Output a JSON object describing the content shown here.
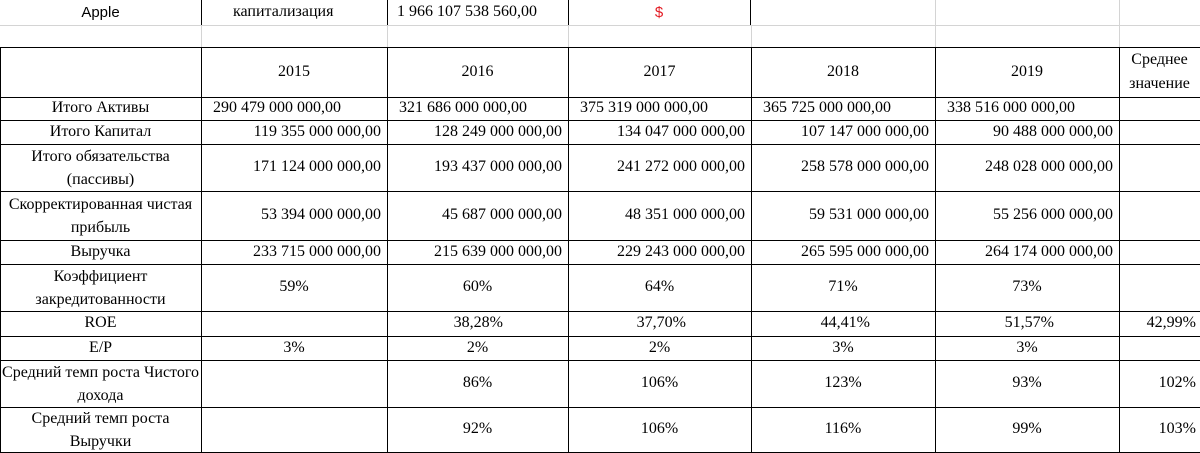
{
  "header": {
    "company": "Apple",
    "cap_label": "капитализация",
    "cap_value": "1 966 107 538 560,00",
    "currency": "$"
  },
  "years": [
    "2015",
    "2016",
    "2017",
    "2018",
    "2019"
  ],
  "avg_header": "Среднее значение",
  "rows": [
    {
      "label": "Итого Активы",
      "values": [
        "290 479 000 000,00",
        "321 686 000 000,00",
        "375 319 000 000,00",
        "365 725 000 000,00",
        "338 516 000 000,00"
      ],
      "avg": ""
    },
    {
      "label": "Итого Капитал",
      "values": [
        "119 355 000 000,00",
        "128 249 000 000,00",
        "134 047 000 000,00",
        "107 147 000 000,00",
        "90 488 000 000,00"
      ],
      "avg": ""
    },
    {
      "label": "Итого обязательства (пассивы)",
      "values": [
        "171 124 000 000,00",
        "193 437 000 000,00",
        "241 272 000 000,00",
        "258 578 000 000,00",
        "248 028 000 000,00"
      ],
      "avg": ""
    },
    {
      "label": "Скорректированная чистая прибыль",
      "values": [
        "53 394 000 000,00",
        "45 687 000 000,00",
        "48 351 000 000,00",
        "59 531 000 000,00",
        "55 256 000 000,00"
      ],
      "avg": ""
    },
    {
      "label": "Выручка",
      "values": [
        "233 715 000 000,00",
        "215 639 000 000,00",
        "229 243 000 000,00",
        "265 595 000 000,00",
        "264 174 000 000,00"
      ],
      "avg": ""
    },
    {
      "label": "Коэффициент закредитованности",
      "values": [
        "59%",
        "60%",
        "64%",
        "71%",
        "73%"
      ],
      "avg": ""
    },
    {
      "label": "ROE",
      "values": [
        "",
        "38,28%",
        "37,70%",
        "44,41%",
        "51,57%"
      ],
      "avg": "42,99%"
    },
    {
      "label": "E/P",
      "values": [
        "3%",
        "2%",
        "2%",
        "3%",
        "3%"
      ],
      "avg": ""
    },
    {
      "label": "Средний темп роста Чистого дохода",
      "values": [
        "",
        "86%",
        "106%",
        "123%",
        "93%"
      ],
      "avg": "102%"
    },
    {
      "label": "Средний темп роста Выручки",
      "values": [
        "",
        "92%",
        "106%",
        "116%",
        "99%"
      ],
      "avg": "103%"
    }
  ]
}
